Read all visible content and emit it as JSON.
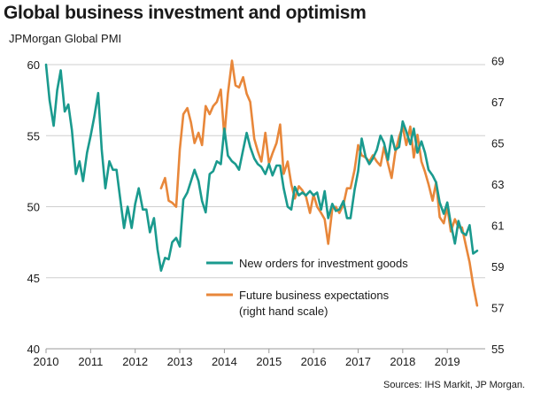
{
  "title": "Global business investment and optimism",
  "source": "Sources: IHS Markit, JP Morgan.",
  "colors": {
    "new_orders": "#1a9a8e",
    "future_expectations": "#e8873a",
    "grid": "#cfcfcf",
    "axis": "#9a9a9a"
  },
  "chart_data": {
    "type": "line",
    "title": "Global business investment and optimism",
    "ylabel": "JPMorgan Global PMI",
    "y2label": "",
    "xlim": [
      2010,
      2019.85
    ],
    "ylim": [
      40,
      61
    ],
    "y2lim": [
      55,
      69.5
    ],
    "x_ticks": [
      2010,
      2011,
      2012,
      2013,
      2014,
      2015,
      2016,
      2017,
      2018,
      2019
    ],
    "y_ticks": [
      40,
      45,
      50,
      55,
      60
    ],
    "y2_ticks": [
      55,
      57,
      59,
      61,
      63,
      65,
      67,
      69
    ],
    "grid": "horizontal",
    "series": [
      {
        "name": "New orders for investment goods",
        "axis": "left",
        "color": "#1a9a8e",
        "points": [
          [
            2010.0,
            60.0
          ],
          [
            2010.08,
            57.5
          ],
          [
            2010.17,
            55.7
          ],
          [
            2010.25,
            58.2
          ],
          [
            2010.33,
            59.6
          ],
          [
            2010.42,
            56.7
          ],
          [
            2010.5,
            57.2
          ],
          [
            2010.58,
            55.4
          ],
          [
            2010.67,
            52.3
          ],
          [
            2010.75,
            53.2
          ],
          [
            2010.83,
            51.8
          ],
          [
            2010.92,
            53.8
          ],
          [
            2011.0,
            55.0
          ],
          [
            2011.08,
            56.3
          ],
          [
            2011.17,
            58.0
          ],
          [
            2011.25,
            54.0
          ],
          [
            2011.33,
            51.3
          ],
          [
            2011.42,
            53.2
          ],
          [
            2011.5,
            52.6
          ],
          [
            2011.58,
            52.6
          ],
          [
            2011.67,
            50.4
          ],
          [
            2011.75,
            48.5
          ],
          [
            2011.83,
            50.0
          ],
          [
            2011.92,
            48.5
          ],
          [
            2012.0,
            50.2
          ],
          [
            2012.08,
            51.3
          ],
          [
            2012.17,
            49.8
          ],
          [
            2012.25,
            49.8
          ],
          [
            2012.33,
            48.2
          ],
          [
            2012.42,
            49.2
          ],
          [
            2012.5,
            47.0
          ],
          [
            2012.58,
            45.5
          ],
          [
            2012.67,
            46.4
          ],
          [
            2012.75,
            46.3
          ],
          [
            2012.83,
            47.5
          ],
          [
            2012.92,
            47.8
          ],
          [
            2013.0,
            47.2
          ],
          [
            2013.08,
            50.5
          ],
          [
            2013.17,
            51.0
          ],
          [
            2013.25,
            51.8
          ],
          [
            2013.33,
            52.6
          ],
          [
            2013.42,
            51.8
          ],
          [
            2013.5,
            50.4
          ],
          [
            2013.58,
            49.6
          ],
          [
            2013.67,
            52.3
          ],
          [
            2013.75,
            52.5
          ],
          [
            2013.83,
            53.2
          ],
          [
            2013.92,
            53.0
          ],
          [
            2014.0,
            55.5
          ],
          [
            2014.08,
            53.6
          ],
          [
            2014.17,
            53.2
          ],
          [
            2014.25,
            53.0
          ],
          [
            2014.33,
            52.6
          ],
          [
            2014.42,
            54.0
          ],
          [
            2014.5,
            55.2
          ],
          [
            2014.58,
            54.2
          ],
          [
            2014.67,
            53.4
          ],
          [
            2014.75,
            53.0
          ],
          [
            2014.83,
            52.8
          ],
          [
            2014.92,
            52.3
          ],
          [
            2015.0,
            53.0
          ],
          [
            2015.08,
            52.2
          ],
          [
            2015.17,
            52.9
          ],
          [
            2015.25,
            52.9
          ],
          [
            2015.33,
            51.3
          ],
          [
            2015.42,
            50.0
          ],
          [
            2015.5,
            49.8
          ],
          [
            2015.58,
            51.4
          ],
          [
            2015.67,
            50.8
          ],
          [
            2015.75,
            51.0
          ],
          [
            2015.83,
            50.8
          ],
          [
            2015.92,
            51.1
          ],
          [
            2016.0,
            50.8
          ],
          [
            2016.08,
            51.0
          ],
          [
            2016.17,
            49.8
          ],
          [
            2016.25,
            51.1
          ],
          [
            2016.33,
            49.2
          ],
          [
            2016.42,
            50.2
          ],
          [
            2016.5,
            49.7
          ],
          [
            2016.58,
            49.8
          ],
          [
            2016.67,
            50.4
          ],
          [
            2016.75,
            49.2
          ],
          [
            2016.83,
            49.2
          ],
          [
            2016.92,
            51.2
          ],
          [
            2017.0,
            52.5
          ],
          [
            2017.08,
            54.8
          ],
          [
            2017.17,
            53.5
          ],
          [
            2017.25,
            53.0
          ],
          [
            2017.33,
            53.4
          ],
          [
            2017.42,
            54.0
          ],
          [
            2017.5,
            55.0
          ],
          [
            2017.58,
            54.5
          ],
          [
            2017.67,
            53.3
          ],
          [
            2017.75,
            55.0
          ],
          [
            2017.83,
            54.0
          ],
          [
            2017.92,
            54.2
          ],
          [
            2018.0,
            56.0
          ],
          [
            2018.08,
            55.3
          ],
          [
            2018.17,
            54.4
          ],
          [
            2018.25,
            55.5
          ],
          [
            2018.33,
            53.8
          ],
          [
            2018.42,
            54.6
          ],
          [
            2018.5,
            53.8
          ],
          [
            2018.58,
            52.6
          ],
          [
            2018.67,
            52.2
          ],
          [
            2018.75,
            51.7
          ],
          [
            2018.83,
            50.3
          ],
          [
            2018.92,
            49.5
          ],
          [
            2019.0,
            50.3
          ],
          [
            2019.08,
            48.8
          ],
          [
            2019.17,
            47.4
          ],
          [
            2019.25,
            49.0
          ],
          [
            2019.33,
            48.2
          ],
          [
            2019.42,
            48.0
          ],
          [
            2019.5,
            48.7
          ],
          [
            2019.58,
            46.7
          ],
          [
            2019.67,
            46.9
          ]
        ]
      },
      {
        "name": "Future business expectations (right hand scale)",
        "axis": "right",
        "color": "#e8873a",
        "points": [
          [
            2012.58,
            62.8
          ],
          [
            2012.67,
            63.3
          ],
          [
            2012.75,
            62.2
          ],
          [
            2012.83,
            62.1
          ],
          [
            2012.92,
            61.9
          ],
          [
            2013.0,
            64.7
          ],
          [
            2013.08,
            66.4
          ],
          [
            2013.17,
            66.7
          ],
          [
            2013.25,
            66.0
          ],
          [
            2013.33,
            65.0
          ],
          [
            2013.42,
            65.5
          ],
          [
            2013.5,
            64.9
          ],
          [
            2013.58,
            66.8
          ],
          [
            2013.67,
            66.4
          ],
          [
            2013.75,
            66.8
          ],
          [
            2013.83,
            67.0
          ],
          [
            2013.92,
            67.6
          ],
          [
            2014.0,
            65.3
          ],
          [
            2014.08,
            67.4
          ],
          [
            2014.17,
            69.0
          ],
          [
            2014.25,
            67.8
          ],
          [
            2014.33,
            67.7
          ],
          [
            2014.42,
            68.2
          ],
          [
            2014.5,
            67.4
          ],
          [
            2014.58,
            67.0
          ],
          [
            2014.67,
            65.2
          ],
          [
            2014.75,
            64.6
          ],
          [
            2014.83,
            64.1
          ],
          [
            2014.92,
            65.5
          ],
          [
            2015.0,
            64.0
          ],
          [
            2015.08,
            64.5
          ],
          [
            2015.17,
            65.0
          ],
          [
            2015.25,
            65.9
          ],
          [
            2015.33,
            63.5
          ],
          [
            2015.42,
            64.1
          ],
          [
            2015.5,
            63.0
          ],
          [
            2015.58,
            62.3
          ],
          [
            2015.67,
            62.9
          ],
          [
            2015.75,
            62.7
          ],
          [
            2015.83,
            62.4
          ],
          [
            2015.92,
            61.6
          ],
          [
            2016.0,
            62.5
          ],
          [
            2016.08,
            61.9
          ],
          [
            2016.17,
            61.6
          ],
          [
            2016.25,
            61.3
          ],
          [
            2016.33,
            60.1
          ],
          [
            2016.42,
            61.8
          ],
          [
            2016.5,
            61.9
          ],
          [
            2016.58,
            61.6
          ],
          [
            2016.67,
            62.0
          ],
          [
            2016.75,
            62.8
          ],
          [
            2016.83,
            62.8
          ],
          [
            2016.92,
            63.7
          ],
          [
            2017.0,
            64.9
          ],
          [
            2017.08,
            64.4
          ],
          [
            2017.17,
            64.3
          ],
          [
            2017.25,
            64.1
          ],
          [
            2017.33,
            64.4
          ],
          [
            2017.42,
            64.1
          ],
          [
            2017.5,
            63.9
          ],
          [
            2017.58,
            64.8
          ],
          [
            2017.67,
            64.0
          ],
          [
            2017.75,
            63.3
          ],
          [
            2017.83,
            64.5
          ],
          [
            2017.92,
            65.3
          ],
          [
            2018.0,
            65.8
          ],
          [
            2018.08,
            64.9
          ],
          [
            2018.17,
            65.8
          ],
          [
            2018.25,
            64.3
          ],
          [
            2018.33,
            65.4
          ],
          [
            2018.42,
            64.1
          ],
          [
            2018.5,
            63.6
          ],
          [
            2018.58,
            63.0
          ],
          [
            2018.67,
            62.2
          ],
          [
            2018.75,
            63.1
          ],
          [
            2018.83,
            61.4
          ],
          [
            2018.92,
            61.1
          ],
          [
            2019.0,
            61.9
          ],
          [
            2019.08,
            60.7
          ],
          [
            2019.17,
            61.3
          ],
          [
            2019.25,
            60.9
          ],
          [
            2019.33,
            60.9
          ],
          [
            2019.42,
            60.0
          ],
          [
            2019.5,
            59.2
          ],
          [
            2019.58,
            58.1
          ],
          [
            2019.67,
            57.1
          ]
        ]
      }
    ],
    "legend": {
      "placement": "inside-lower-right",
      "entries": [
        {
          "label": "New orders for investment goods",
          "color": "#1a9a8e"
        },
        {
          "label": "Future business expectations",
          "label_line2": "(right hand scale)",
          "color": "#e8873a"
        }
      ]
    }
  }
}
